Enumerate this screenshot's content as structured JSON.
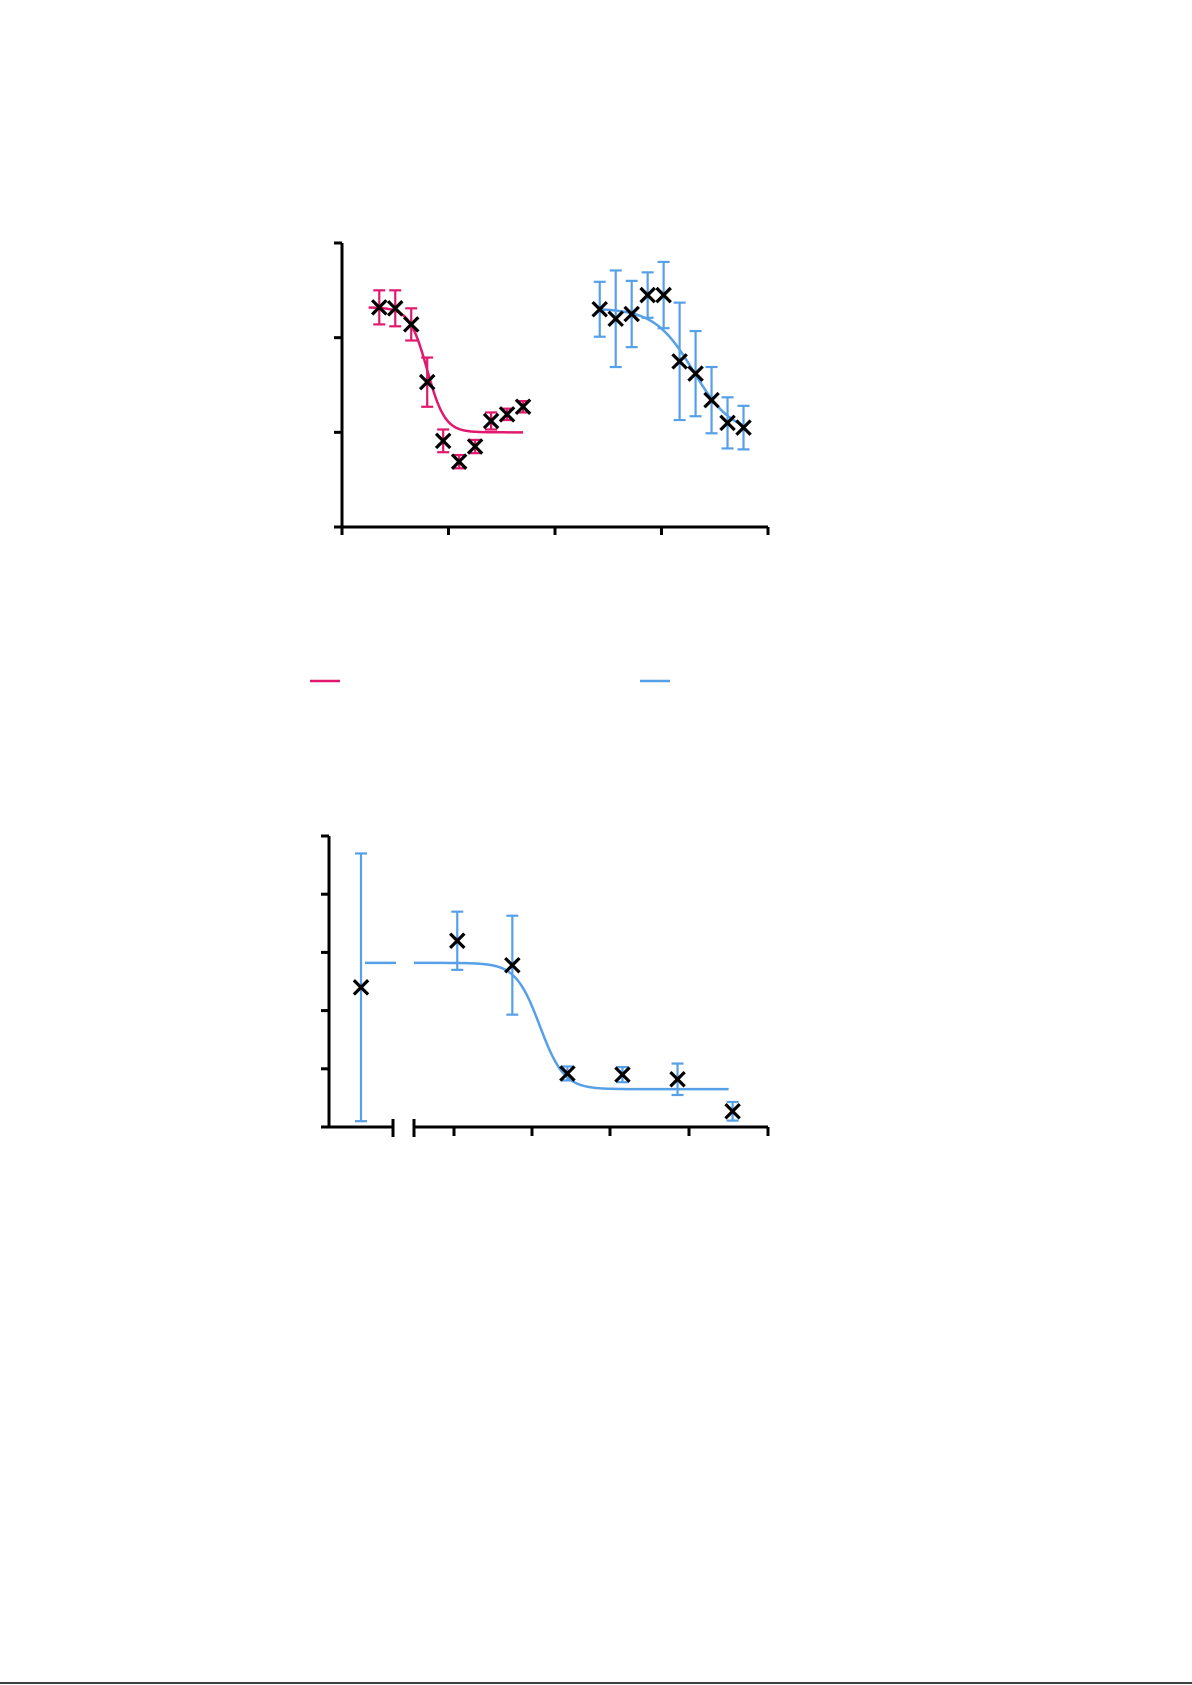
{
  "colors": {
    "series_pink": "#e0196e",
    "series_blue": "#56a0e8",
    "marker": "#000000",
    "axis": "#000000"
  },
  "chart_data": [
    {
      "type": "scatter",
      "title": "",
      "xlabel": "",
      "ylabel": "",
      "grid": false,
      "y_ticks": 4,
      "x_ticks": 5,
      "ylim": [
        0,
        3
      ],
      "xlim": [
        0,
        4
      ],
      "series": [
        {
          "color_key": "series_pink",
          "points": [
            {
              "x": 0.35,
              "y": 2.32,
              "err": 0.18
            },
            {
              "x": 0.5,
              "y": 2.31,
              "err": 0.19
            },
            {
              "x": 0.65,
              "y": 2.14,
              "err": 0.17
            },
            {
              "x": 0.8,
              "y": 1.53,
              "err": 0.26
            },
            {
              "x": 0.95,
              "y": 0.91,
              "err": 0.12
            },
            {
              "x": 1.1,
              "y": 0.69,
              "err": 0.07
            },
            {
              "x": 1.25,
              "y": 0.85,
              "err": 0.07
            },
            {
              "x": 1.4,
              "y": 1.12,
              "err": 0.09
            },
            {
              "x": 1.55,
              "y": 1.19,
              "err": 0.06
            },
            {
              "x": 1.7,
              "y": 1.27,
              "err": 0.06
            }
          ],
          "fit": {
            "top": 2.32,
            "bottom": 1.0,
            "mid": 0.8,
            "slope": 12,
            "from": 0.25,
            "to": 1.7
          }
        },
        {
          "color_key": "series_blue",
          "points": [
            {
              "x": 2.42,
              "y": 2.3,
              "err": 0.29
            },
            {
              "x": 2.57,
              "y": 2.2,
              "err": 0.51
            },
            {
              "x": 2.72,
              "y": 2.25,
              "err": 0.35
            },
            {
              "x": 2.87,
              "y": 2.45,
              "err": 0.24
            },
            {
              "x": 3.02,
              "y": 2.45,
              "err": 0.35
            },
            {
              "x": 3.17,
              "y": 1.75,
              "err": 0.62
            },
            {
              "x": 3.32,
              "y": 1.62,
              "err": 0.45
            },
            {
              "x": 3.47,
              "y": 1.34,
              "err": 0.35
            },
            {
              "x": 3.62,
              "y": 1.1,
              "err": 0.27
            },
            {
              "x": 3.77,
              "y": 1.05,
              "err": 0.23
            }
          ],
          "fit": {
            "top": 2.31,
            "bottom": 0.98,
            "mid": 3.3,
            "slope": 5.5,
            "from": 2.42,
            "to": 3.77
          }
        }
      ]
    },
    {
      "type": "scatter",
      "title": "",
      "xlabel": "",
      "ylabel": "",
      "grid": false,
      "broken_x_axis": true,
      "y_ticks": 6,
      "x_ticks_main": 5,
      "ylim": [
        0,
        5
      ],
      "series": [
        {
          "color_key": "series_blue",
          "baseline_point": {
            "y": 2.4,
            "err": 2.3
          },
          "baseline_fit_level": 2.82,
          "points": [
            {
              "x": 0.55,
              "y": 3.2,
              "err": 0.5
            },
            {
              "x": 1.25,
              "y": 2.78,
              "err": 0.85
            },
            {
              "x": 1.95,
              "y": 0.92,
              "err": 0.12
            },
            {
              "x": 2.65,
              "y": 0.9,
              "err": 0.13
            },
            {
              "x": 3.35,
              "y": 0.82,
              "err": 0.27
            },
            {
              "x": 4.05,
              "y": 0.27,
              "err": 0.16
            }
          ],
          "xlim": [
            0,
            4.5
          ],
          "fit": {
            "top": 2.82,
            "bottom": 0.65,
            "mid": 1.6,
            "slope": 6.5,
            "from": 0.0,
            "to": 4.0
          }
        }
      ]
    }
  ],
  "legend": [
    {
      "color_key": "series_pink",
      "label": ""
    },
    {
      "color_key": "series_blue",
      "label": ""
    }
  ]
}
